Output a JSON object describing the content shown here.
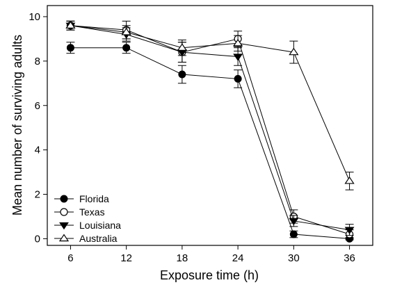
{
  "chart_data": {
    "type": "line",
    "xlabel": "Exposure time (h)",
    "ylabel": "Mean number of surviving adults",
    "x": [
      6,
      12,
      18,
      24,
      30,
      36
    ],
    "xticks": [
      6,
      12,
      18,
      24,
      30,
      36
    ],
    "yticks": [
      0,
      2,
      4,
      6,
      8,
      10
    ],
    "xlim": [
      3.5,
      38.5
    ],
    "ylim": [
      -0.3,
      10.5
    ],
    "grid": false,
    "legend_position": "bottom-left",
    "series": [
      {
        "name": "Florida",
        "marker": "filled-circle",
        "values": [
          8.6,
          8.6,
          7.4,
          7.2,
          0.2,
          0.0
        ],
        "errors": [
          0.25,
          0.25,
          0.4,
          0.4,
          0.15,
          0.05
        ]
      },
      {
        "name": "Texas",
        "marker": "open-circle",
        "values": [
          9.6,
          9.4,
          8.4,
          9.0,
          1.0,
          0.2
        ],
        "errors": [
          0.2,
          0.4,
          0.45,
          0.35,
          0.3,
          0.2
        ]
      },
      {
        "name": "Louisiana",
        "marker": "filled-triangle-down",
        "values": [
          9.6,
          9.2,
          8.4,
          8.2,
          0.8,
          0.4
        ],
        "errors": [
          0.2,
          0.3,
          0.45,
          0.4,
          0.25,
          0.25
        ]
      },
      {
        "name": "Australia",
        "marker": "open-triangle-up",
        "values": [
          9.6,
          9.3,
          8.6,
          8.8,
          8.4,
          2.6
        ],
        "errors": [
          0.2,
          0.3,
          0.35,
          0.35,
          0.5,
          0.4
        ]
      }
    ]
  }
}
